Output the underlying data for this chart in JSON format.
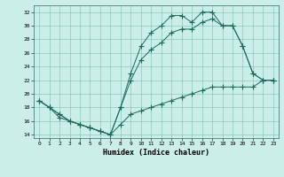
{
  "title": "",
  "xlabel": "Humidex (Indice chaleur)",
  "bg_color": "#cceee8",
  "line_color": "#1a6b5a",
  "xlim": [
    -0.5,
    23.5
  ],
  "ylim": [
    13.5,
    33
  ],
  "yticks": [
    14,
    16,
    18,
    20,
    22,
    24,
    26,
    28,
    30,
    32
  ],
  "xticks": [
    0,
    1,
    2,
    3,
    4,
    5,
    6,
    7,
    8,
    9,
    10,
    11,
    12,
    13,
    14,
    15,
    16,
    17,
    18,
    19,
    20,
    21,
    22,
    23
  ],
  "line1_x": [
    0,
    1,
    2,
    3,
    4,
    5,
    6,
    7,
    8,
    9,
    10,
    11,
    12,
    13,
    14,
    15,
    16,
    17,
    18,
    19,
    20,
    21,
    22,
    23
  ],
  "line1_y": [
    19,
    18,
    17,
    16,
    15.5,
    15,
    14.5,
    14,
    18,
    23,
    27,
    29,
    30,
    31.5,
    31.5,
    30.5,
    32,
    32,
    30,
    30,
    27,
    23,
    22,
    22
  ],
  "line2_x": [
    0,
    1,
    2,
    3,
    4,
    5,
    6,
    7,
    8,
    9,
    10,
    11,
    12,
    13,
    14,
    15,
    16,
    17,
    18,
    19,
    20,
    21,
    22,
    23
  ],
  "line2_y": [
    19,
    18,
    17,
    16,
    15.5,
    15,
    14.5,
    14,
    18,
    22,
    25,
    26.5,
    27.5,
    29,
    29.5,
    29.5,
    30.5,
    31,
    30,
    30,
    27,
    23,
    22,
    22
  ],
  "line3_x": [
    0,
    1,
    2,
    3,
    4,
    5,
    6,
    7,
    8,
    9,
    10,
    11,
    12,
    13,
    14,
    15,
    16,
    17,
    18,
    19,
    20,
    21,
    22,
    23
  ],
  "line3_y": [
    19,
    18,
    16.5,
    16,
    15.5,
    15,
    14.5,
    14,
    15.5,
    17,
    17.5,
    18,
    18.5,
    19,
    19.5,
    20,
    20.5,
    21,
    21,
    21,
    21,
    21,
    22,
    22
  ]
}
